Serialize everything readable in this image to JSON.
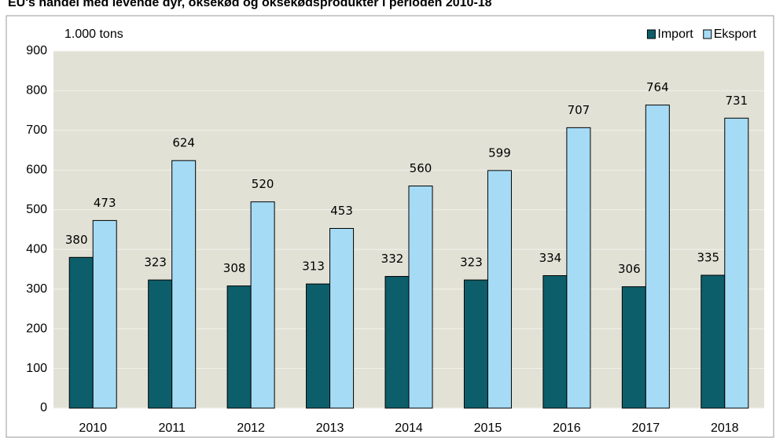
{
  "chart_data": {
    "type": "bar",
    "title": "EU's handel med levende dyr, oksekød og oksekødsprodukter i perioden 2010-18",
    "y_label": "1.000 tons",
    "categories": [
      "2010",
      "2011",
      "2012",
      "2013",
      "2014",
      "2015",
      "2016",
      "2017",
      "2018"
    ],
    "series": [
      {
        "name": "Import",
        "color": "#0c5f6a",
        "values": [
          380,
          323,
          308,
          313,
          332,
          323,
          334,
          306,
          335
        ]
      },
      {
        "name": "Eksport",
        "color": "#a5dbf5",
        "values": [
          473,
          624,
          520,
          453,
          560,
          599,
          707,
          764,
          731
        ]
      }
    ],
    "ylim": [
      0,
      900
    ],
    "yticks": [
      0,
      100,
      200,
      300,
      400,
      500,
      600,
      700,
      800,
      900
    ],
    "grid": true,
    "legend": "top-right"
  }
}
